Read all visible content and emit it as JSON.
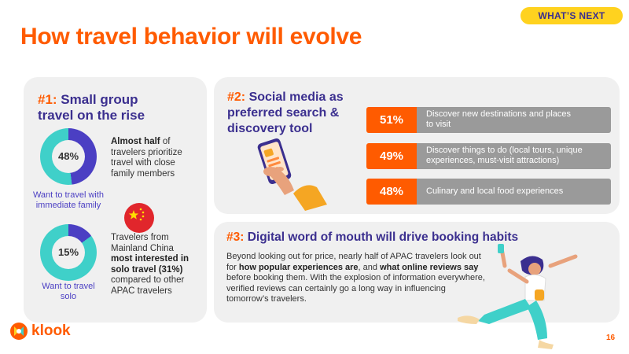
{
  "header": {
    "tag": "WHAT’S NEXT",
    "title": "How travel behavior will evolve"
  },
  "card1": {
    "heading_num": "#1:",
    "heading_line1": " Small group",
    "heading_line2": "travel on the rise",
    "stat1": {
      "percent_label": "48%",
      "percent": 48,
      "caption_line1": "Want to travel with",
      "caption_line2": "immediate family",
      "text_bold": "Almost half",
      "text_rest_line1": " of",
      "text_line2": "travelers prioritize",
      "text_line3": "travel with close",
      "text_line4": "family members"
    },
    "stat2": {
      "percent_label": "15%",
      "percent": 15,
      "caption_line1": "Want to travel",
      "caption_line2": "solo",
      "text_line1": "Travelers from",
      "text_line2": "Mainland China",
      "text_bold_line3": "most interested in",
      "text_bold_line4": "solo travel (31%)",
      "text_line5": "compared to other",
      "text_line6": "APAC travelers"
    },
    "flag_icon": "china-flag-icon"
  },
  "card2": {
    "heading_num": "#2:",
    "heading_line1": " Social media as",
    "heading_line2": "preferred search &",
    "heading_line3": "discovery tool",
    "illustration": "hand-holding-phone-icon",
    "stats": [
      {
        "value": "51%",
        "line1": "Discover new destinations and places",
        "line2": "to visit"
      },
      {
        "value": "49%",
        "line1": "Discover things to do (local tours, unique",
        "line2": "experiences, must-visit attractions)"
      },
      {
        "value": "48%",
        "line1": "Culinary and local food experiences",
        "line2": ""
      }
    ]
  },
  "card3": {
    "heading_num": "#3:",
    "heading_rest": " Digital word of mouth will drive booking habits",
    "para_1": "Beyond looking out for price, nearly half of APAC travelers look out for ",
    "para_bold_1": "how popular experiences are",
    "para_2": ", and ",
    "para_bold_2": "what online reviews say",
    "para_3": " before booking them. With the explosion of information everywhere, verified reviews can certainly go a long way in influencing tomorrow’s travelers.",
    "illustration": "jumping-traveler-icon"
  },
  "footer": {
    "logo_text": "klook",
    "page_number": "16"
  },
  "colors": {
    "orange": "#ff5b00",
    "purple": "#3b2f8f",
    "ring_purple": "#4b3fc3",
    "ring_teal": "#3fd0c9",
    "yellow": "#ffd21f",
    "gray_bar": "#9a9a9a"
  }
}
